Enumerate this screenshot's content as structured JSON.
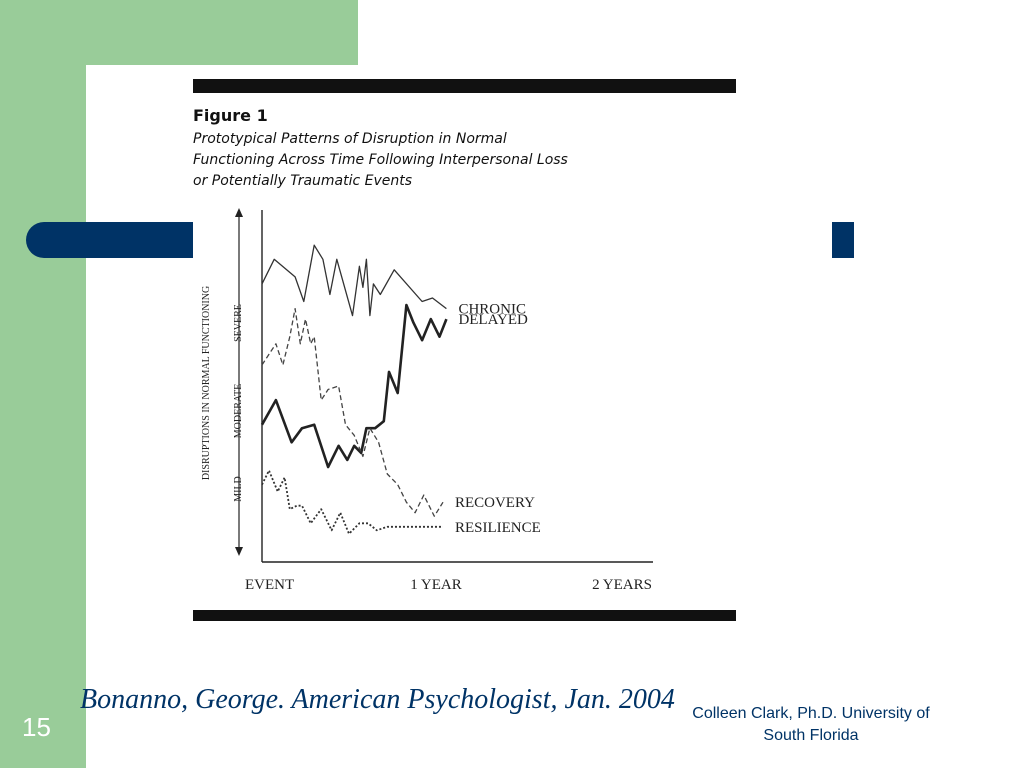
{
  "slide": {
    "number": "15",
    "citation": "Bonanno, George. American Psychologist, Jan. 2004",
    "author_line1": "Colleen Clark, Ph.D. University of",
    "author_line2": "South Florida",
    "colors": {
      "green": "#99cc99",
      "navy": "#003366"
    }
  },
  "chart_data": {
    "type": "line",
    "title": "Figure 1",
    "subtitle_lines": [
      "Prototypical Patterns of Disruption in Normal",
      "Functioning Across Time Following Interpersonal Loss",
      "or Potentially Traumatic Events"
    ],
    "ylabel": "DISRUPTIONS IN NORMAL FUNCTIONING",
    "y_levels": [
      "MILD",
      "MODERATE",
      "SEVERE"
    ],
    "x_ticks": [
      {
        "label": "EVENT",
        "x": 0
      },
      {
        "label": "1 YEAR",
        "x": 1
      },
      {
        "label": "2 YEARS",
        "x": 2
      }
    ],
    "xlim": [
      0,
      2
    ],
    "ylim": [
      0,
      10
    ],
    "series": [
      {
        "name": "CHRONIC",
        "style": "thin-solid",
        "x": [
          0,
          0.07,
          0.19,
          0.24,
          0.3,
          0.35,
          0.39,
          0.43,
          0.52,
          0.56,
          0.58,
          0.6,
          0.62,
          0.64,
          0.68,
          0.76,
          0.92,
          0.98,
          1.06
        ],
        "y": [
          7.9,
          8.6,
          8.1,
          7.4,
          9.0,
          8.6,
          7.6,
          8.6,
          7.0,
          8.4,
          7.8,
          8.6,
          7.0,
          7.9,
          7.6,
          8.3,
          7.4,
          7.5,
          7.2
        ]
      },
      {
        "name": "DELAYED",
        "style": "thick-solid",
        "x": [
          0,
          0.08,
          0.17,
          0.23,
          0.3,
          0.38,
          0.44,
          0.49,
          0.53,
          0.57,
          0.6,
          0.65,
          0.7,
          0.73,
          0.78,
          0.83,
          0.87,
          0.92,
          0.97,
          1.02,
          1.06
        ],
        "y": [
          3.9,
          4.6,
          3.4,
          3.8,
          3.9,
          2.7,
          3.3,
          2.9,
          3.3,
          3.1,
          3.8,
          3.8,
          4.0,
          5.4,
          4.8,
          7.3,
          6.8,
          6.3,
          6.9,
          6.4,
          6.9
        ]
      },
      {
        "name": "RECOVERY",
        "style": "dashed",
        "x": [
          0,
          0.08,
          0.12,
          0.16,
          0.19,
          0.22,
          0.25,
          0.28,
          0.3,
          0.34,
          0.38,
          0.44,
          0.48,
          0.53,
          0.58,
          0.62,
          0.67,
          0.72,
          0.78,
          0.83,
          0.88,
          0.93,
          0.99,
          1.04
        ],
        "y": [
          5.6,
          6.2,
          5.6,
          6.4,
          7.2,
          6.2,
          6.9,
          6.2,
          6.4,
          4.6,
          4.9,
          5.0,
          3.9,
          3.6,
          3.0,
          3.8,
          3.4,
          2.5,
          2.2,
          1.7,
          1.4,
          1.9,
          1.3,
          1.7
        ]
      },
      {
        "name": "RESILIENCE",
        "style": "dotted",
        "x": [
          0,
          0.04,
          0.09,
          0.13,
          0.16,
          0.2,
          0.23,
          0.28,
          0.34,
          0.4,
          0.45,
          0.5,
          0.56,
          0.61,
          0.66,
          0.72,
          0.8,
          0.88,
          0.96,
          1.04
        ],
        "y": [
          2.2,
          2.6,
          2.0,
          2.4,
          1.5,
          1.6,
          1.6,
          1.1,
          1.5,
          0.9,
          1.4,
          0.8,
          1.1,
          1.1,
          0.9,
          1.0,
          1.0,
          1.0,
          1.0,
          1.0
        ]
      }
    ]
  }
}
